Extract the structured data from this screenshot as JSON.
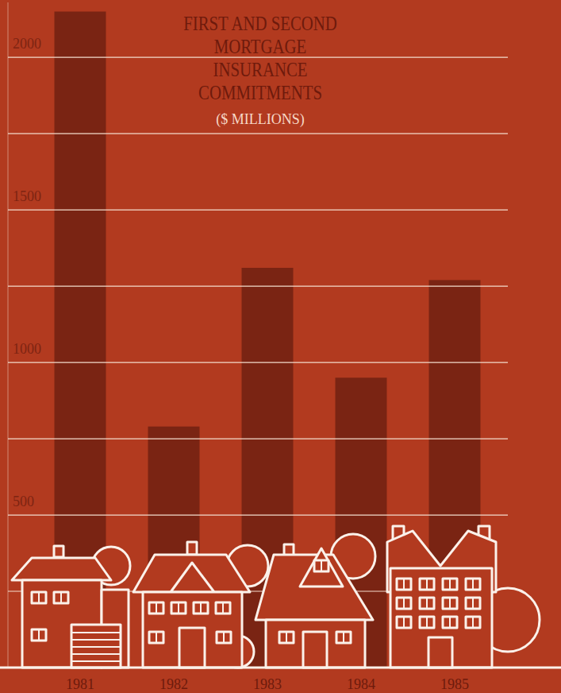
{
  "chart_data": {
    "type": "bar",
    "title": "FIRST AND SECOND MORTGAGE INSURANCE COMMITMENTS",
    "subtitle": "($ MILLIONS)",
    "categories": [
      "1981",
      "1982",
      "1983",
      "1984",
      "1985"
    ],
    "values": [
      2150,
      790,
      1310,
      950,
      1270
    ],
    "color": "#7a2413",
    "ylim": [
      0,
      2180
    ],
    "yticks": [
      500,
      1000,
      1500,
      2000
    ],
    "grid": true
  }
}
